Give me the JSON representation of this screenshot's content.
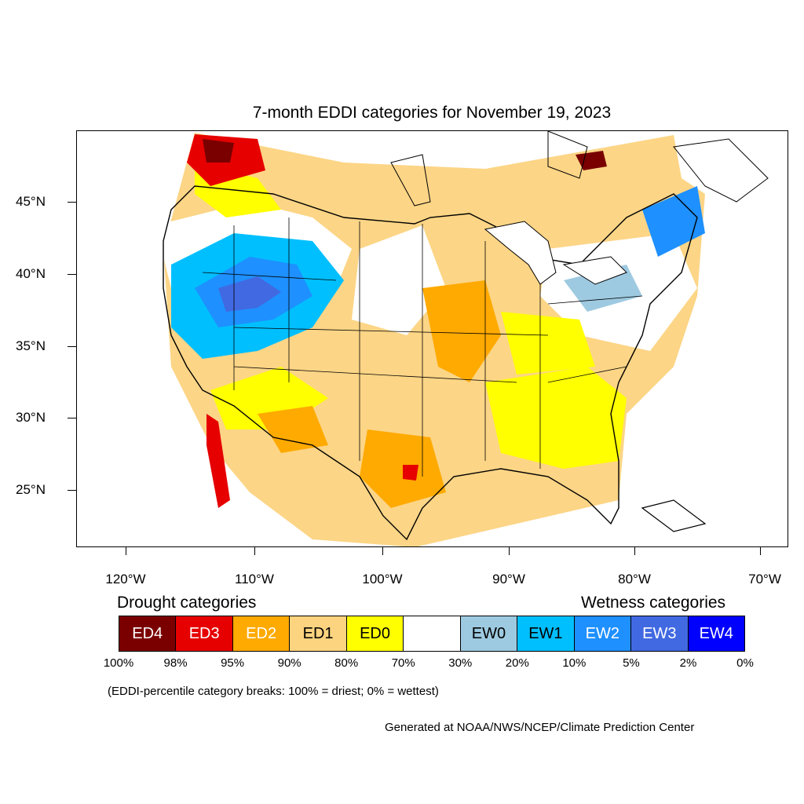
{
  "title": "7-month EDDI categories for November 19, 2023",
  "lat_labels": [
    "45°N",
    "40°N",
    "35°N",
    "30°N",
    "25°N"
  ],
  "lon_labels": [
    "120°W",
    "110°W",
    "100°W",
    "90°W",
    "80°W",
    "70°W"
  ],
  "drought_title": "Drought categories",
  "wetness_title": "Wetness categories",
  "legend": [
    {
      "label": "ED4",
      "color": "#7a0000",
      "text_color": "#ffffff"
    },
    {
      "label": "ED3",
      "color": "#e60000",
      "text_color": "#ffffff"
    },
    {
      "label": "ED2",
      "color": "#ffaa00",
      "text_color": "#ffffff"
    },
    {
      "label": "ED1",
      "color": "#fcd37f",
      "text_color": "#000000"
    },
    {
      "label": "ED0",
      "color": "#ffff00",
      "text_color": "#000000"
    },
    {
      "label": "",
      "color": "#ffffff",
      "text_color": "#000000"
    },
    {
      "label": "EW0",
      "color": "#9ecae1",
      "text_color": "#000000"
    },
    {
      "label": "EW1",
      "color": "#00bfff",
      "text_color": "#000000"
    },
    {
      "label": "EW2",
      "color": "#1e90ff",
      "text_color": "#ffffff"
    },
    {
      "label": "EW3",
      "color": "#4169e1",
      "text_color": "#ffffff"
    },
    {
      "label": "EW4",
      "color": "#0000ff",
      "text_color": "#ffffff"
    }
  ],
  "percentiles": [
    "100%",
    "98%",
    "95%",
    "90%",
    "80%",
    "70%",
    "30%",
    "20%",
    "10%",
    "5%",
    "2%",
    "0%"
  ],
  "note": "(EDDI-percentile category breaks: 100% = driest; 0% = wettest)",
  "credit": "Generated at NOAA/NWS/NCEP/Climate Prediction Center"
}
